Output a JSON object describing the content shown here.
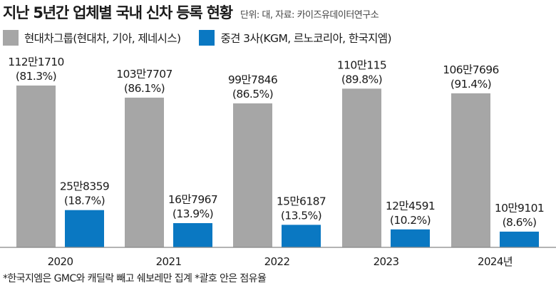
{
  "header": {
    "title": "지난 5년간 업체별 국내 신차 등록 현황",
    "source": "단위: 대, 자료: 카이즈유데이터연구소"
  },
  "footnote": "*한국지엠은 GMC와 캐딜락 빼고 쉐보레만 집계 *괄호 안은 점유율",
  "colors": {
    "series_a": "#a6a6a6",
    "series_b": "#0a78c2",
    "axis": "#888888"
  },
  "chart_data": {
    "type": "bar",
    "title": "지난 5년간 업체별 국내 신차 등록 현황",
    "unit": "대",
    "xlabel": "",
    "ylabel": "",
    "ylim": [
      0,
      1250000
    ],
    "grid": false,
    "legend": "top-left",
    "categories": [
      "2020",
      "2021",
      "2022",
      "2023",
      "2024년"
    ],
    "series": [
      {
        "name": "현대차그룹(현대차, 기아, 제네시스)",
        "values": [
          1121710,
          1037707,
          997846,
          1100115,
          1067696
        ],
        "labels": [
          "112만1710",
          "103만7707",
          "99만7846",
          "110만115",
          "106만7696"
        ],
        "shares": [
          "(81.3%)",
          "(86.1%)",
          "(86.5%)",
          "(89.8%)",
          "(91.4%)"
        ]
      },
      {
        "name": "중견 3사(KGM, 르노코리아, 한국지엠)",
        "values": [
          258359,
          167967,
          156187,
          124591,
          109101
        ],
        "labels": [
          "25만8359",
          "16만7967",
          "15만6187",
          "12만4591",
          "10만9101"
        ],
        "shares": [
          "(18.7%)",
          "(13.9%)",
          "(13.5%)",
          "(10.2%)",
          "(8.6%)"
        ]
      }
    ]
  }
}
